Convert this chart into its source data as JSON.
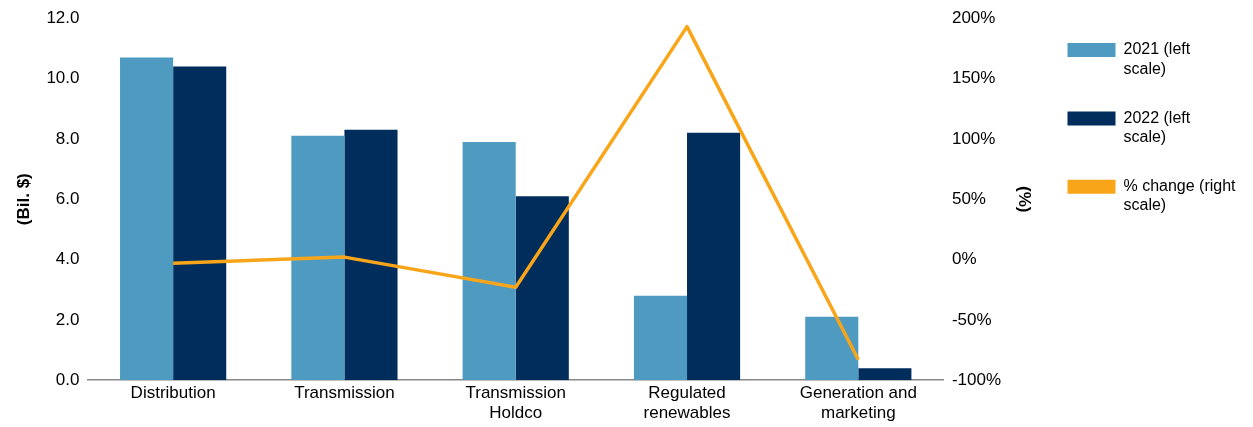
{
  "chart_data": {
    "type": "bar",
    "categories": [
      "Distribution",
      "Transmission",
      "Transmission Holdco",
      "Regulated renewables",
      "Generation and marketing"
    ],
    "ylabel": "(Bil. $)",
    "y2label": "(%)",
    "ylim": [
      0,
      12
    ],
    "yticks": [
      {
        "value": 0,
        "label": "0.0"
      },
      {
        "value": 2,
        "label": "2.0"
      },
      {
        "value": 4,
        "label": "4.0"
      },
      {
        "value": 6,
        "label": "6.0"
      },
      {
        "value": 8,
        "label": "8.0"
      },
      {
        "value": 10,
        "label": "10.0"
      },
      {
        "value": 12,
        "label": "12.0"
      }
    ],
    "y2lim": [
      -100,
      200
    ],
    "y2ticks": [
      {
        "value": -100,
        "label": "-100%"
      },
      {
        "value": -50,
        "label": "-50%"
      },
      {
        "value": 0,
        "label": "0%"
      },
      {
        "value": 50,
        "label": "50%"
      },
      {
        "value": 100,
        "label": "100%"
      },
      {
        "value": 150,
        "label": "150%"
      },
      {
        "value": 200,
        "label": "200%"
      }
    ],
    "grid": false,
    "legend": "right",
    "series": [
      {
        "name": "2021 (left scale)",
        "color": "#4f9ac0",
        "values": [
          10.7,
          8.1,
          7.9,
          2.8,
          2.1
        ]
      },
      {
        "name": "2022 (left scale)",
        "color": "#002d5c",
        "values": [
          10.4,
          8.3,
          6.1,
          8.2,
          0.4
        ]
      },
      {
        "name": "% change (right scale)",
        "type": "line",
        "axis": "y2",
        "color": "#f9a51a",
        "values": [
          -3,
          2,
          -23,
          193,
          -83
        ]
      }
    ]
  }
}
